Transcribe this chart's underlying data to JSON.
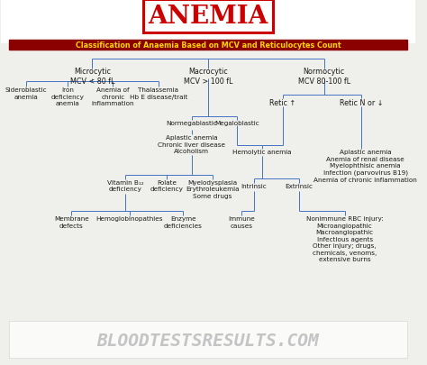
{
  "title": "ANEMIA",
  "subtitle": "Classification of Anaemia Based on MCV and Reticulocytes Count",
  "subtitle_bg": "#8B0000",
  "subtitle_fg": "#FFD700",
  "line_color": "#4472C4",
  "text_color": "#1a1a1a",
  "bg_color": "#EFEFEB",
  "watermark": "BLOODTESTSRESULTS.COM",
  "fs_main": 6.5,
  "fs_small": 5.8,
  "fs_tiny": 5.2
}
